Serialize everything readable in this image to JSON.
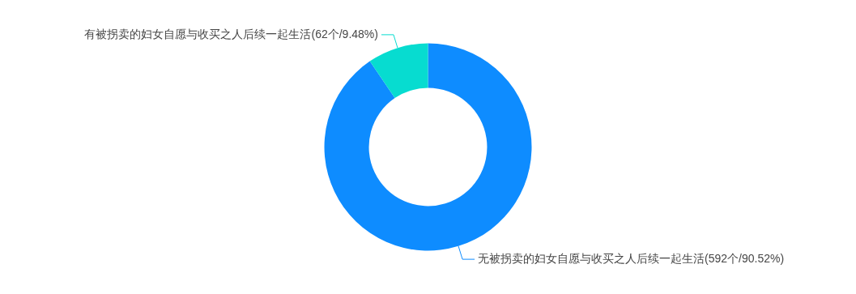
{
  "chart_data": {
    "type": "donut",
    "categories": [
      "无被拐卖的妇女自愿与收买之人后续一起生活",
      "有被拐卖的妇女自愿与收买之人后续一起生活"
    ],
    "values": [
      90.52,
      9.48
    ],
    "value_labels": [
      "(592个/90.52%)",
      "(62个/9.48%)"
    ],
    "colors": [
      "#0e8cff",
      "#07dcd0"
    ],
    "legend": false
  }
}
